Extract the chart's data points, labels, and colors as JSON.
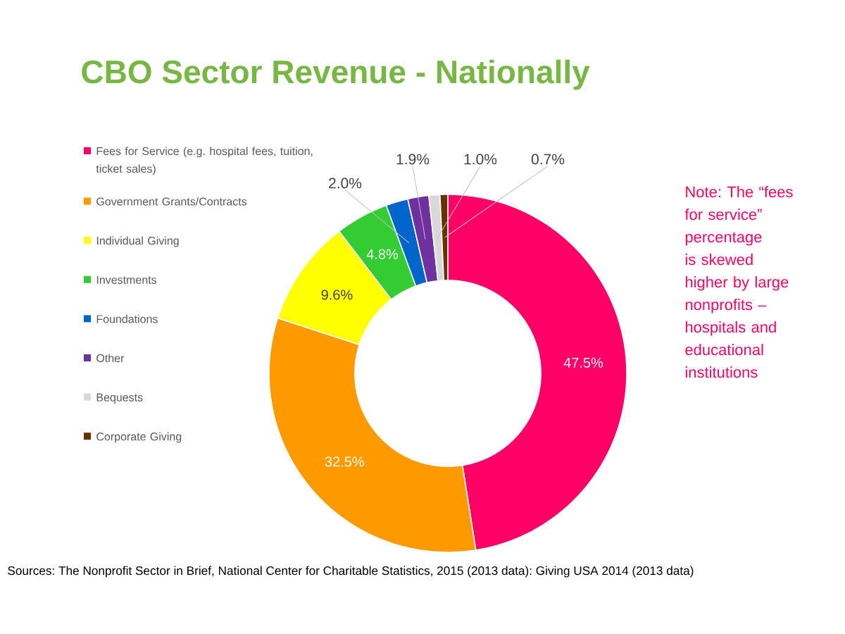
{
  "chart_data": {
    "type": "donut",
    "title": "CBO Sector Revenue - Nationally",
    "categories": [
      "Fees for Service (e.g. hospital fees, tuition, ticket sales)",
      "Government Grants/Contracts",
      "Individual Giving",
      "Investments",
      "Foundations",
      "Other",
      "Bequests",
      "Corporate Giving"
    ],
    "values": [
      47.5,
      32.5,
      9.6,
      4.8,
      2.0,
      1.9,
      1.0,
      0.7
    ],
    "colors": [
      "#ff0066",
      "#ff9900",
      "#ffff00",
      "#33cc33",
      "#0066cc",
      "#7030a0",
      "#d9d9d9",
      "#663300"
    ],
    "value_labels": [
      "47.5%",
      "32.5%",
      "9.6%",
      "4.8%",
      "2.0%",
      "1.9%",
      "1.0%",
      "0.7%"
    ],
    "legend": "left",
    "annotations": [
      "Note: The “fees for service” percentage is skewed higher by large nonprofits – hospitals and educational institutions",
      "Sources: The Nonprofit Sector in Brief, National Center for Charitable Statistics, 2015 (2013 data): Giving USA 2014 (2013 data)"
    ]
  }
}
